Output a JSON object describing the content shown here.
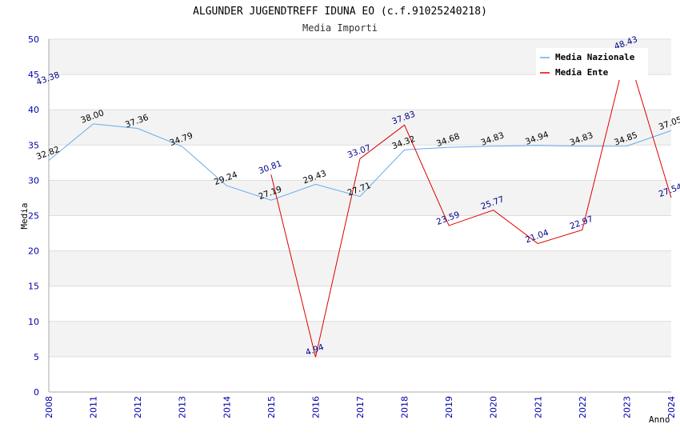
{
  "chart_data": {
    "type": "line",
    "title": "ALGUNDER JUGENDTREFF IDUNA EO (c.f.91025240218)",
    "subtitle": "Media Importi",
    "xlabel": "Anno",
    "ylabel": "Media",
    "ylim": [
      0,
      50
    ],
    "yticks": [
      0,
      5,
      10,
      15,
      20,
      25,
      30,
      35,
      40,
      45,
      50
    ],
    "x": [
      "2008",
      "2011",
      "2012",
      "2013",
      "2014",
      "2015",
      "2016",
      "2017",
      "2018",
      "2019",
      "2020",
      "2021",
      "2022",
      "2023",
      "2024"
    ],
    "grid": true,
    "legend_position": "top-right",
    "series": [
      {
        "name": "Media Nazionale",
        "color": "#66aaee",
        "values": [
          32.82,
          38.0,
          37.36,
          34.79,
          29.24,
          27.19,
          29.43,
          27.71,
          34.32,
          34.68,
          34.83,
          34.94,
          34.83,
          34.85,
          37.05
        ],
        "labels": [
          "32.82",
          "38.00",
          "37.36",
          "34.79",
          "29.24",
          "27.19",
          "29.43",
          "27.71",
          "34.32",
          "34.68",
          "34.83",
          "34.94",
          "34.83",
          "34.85",
          "37.05"
        ]
      },
      {
        "name": "Media Ente",
        "color": "#dd0000",
        "values": [
          43.38,
          null,
          null,
          null,
          null,
          30.81,
          4.94,
          33.07,
          37.83,
          23.59,
          25.77,
          21.04,
          22.97,
          48.43,
          27.54
        ],
        "labels": [
          "43.38",
          "",
          "",
          "",
          "",
          "30.81",
          "4.94",
          "33.07",
          "37.83",
          "23.59",
          "25.77",
          "21.04",
          "22.97",
          "48.43",
          "27.54"
        ]
      }
    ]
  }
}
